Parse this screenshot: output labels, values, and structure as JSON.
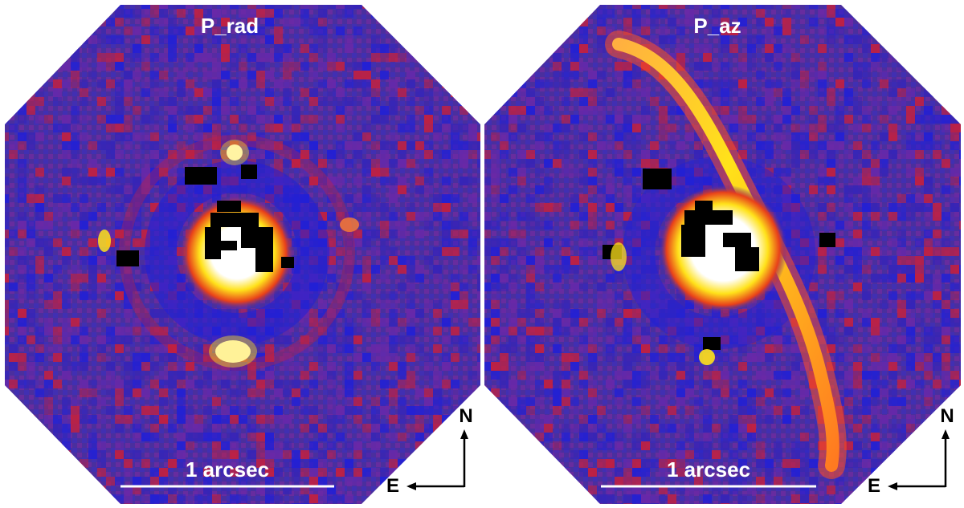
{
  "panels": [
    {
      "title": "P_rad",
      "scale_bar_label": "1 arcsec",
      "compass": {
        "north": "N",
        "east": "E"
      }
    },
    {
      "title": "P_az",
      "scale_bar_label": "1 arcsec",
      "compass": {
        "north": "N",
        "east": "E"
      }
    }
  ],
  "colors": {
    "background_blue": "#4a2f9e",
    "noise_red": "#c8203a",
    "noise_blue": "#1f1fd8",
    "disk_yellow": "#ffe21a",
    "saturated_white": "#ffffff",
    "masked_black": "#000000"
  }
}
